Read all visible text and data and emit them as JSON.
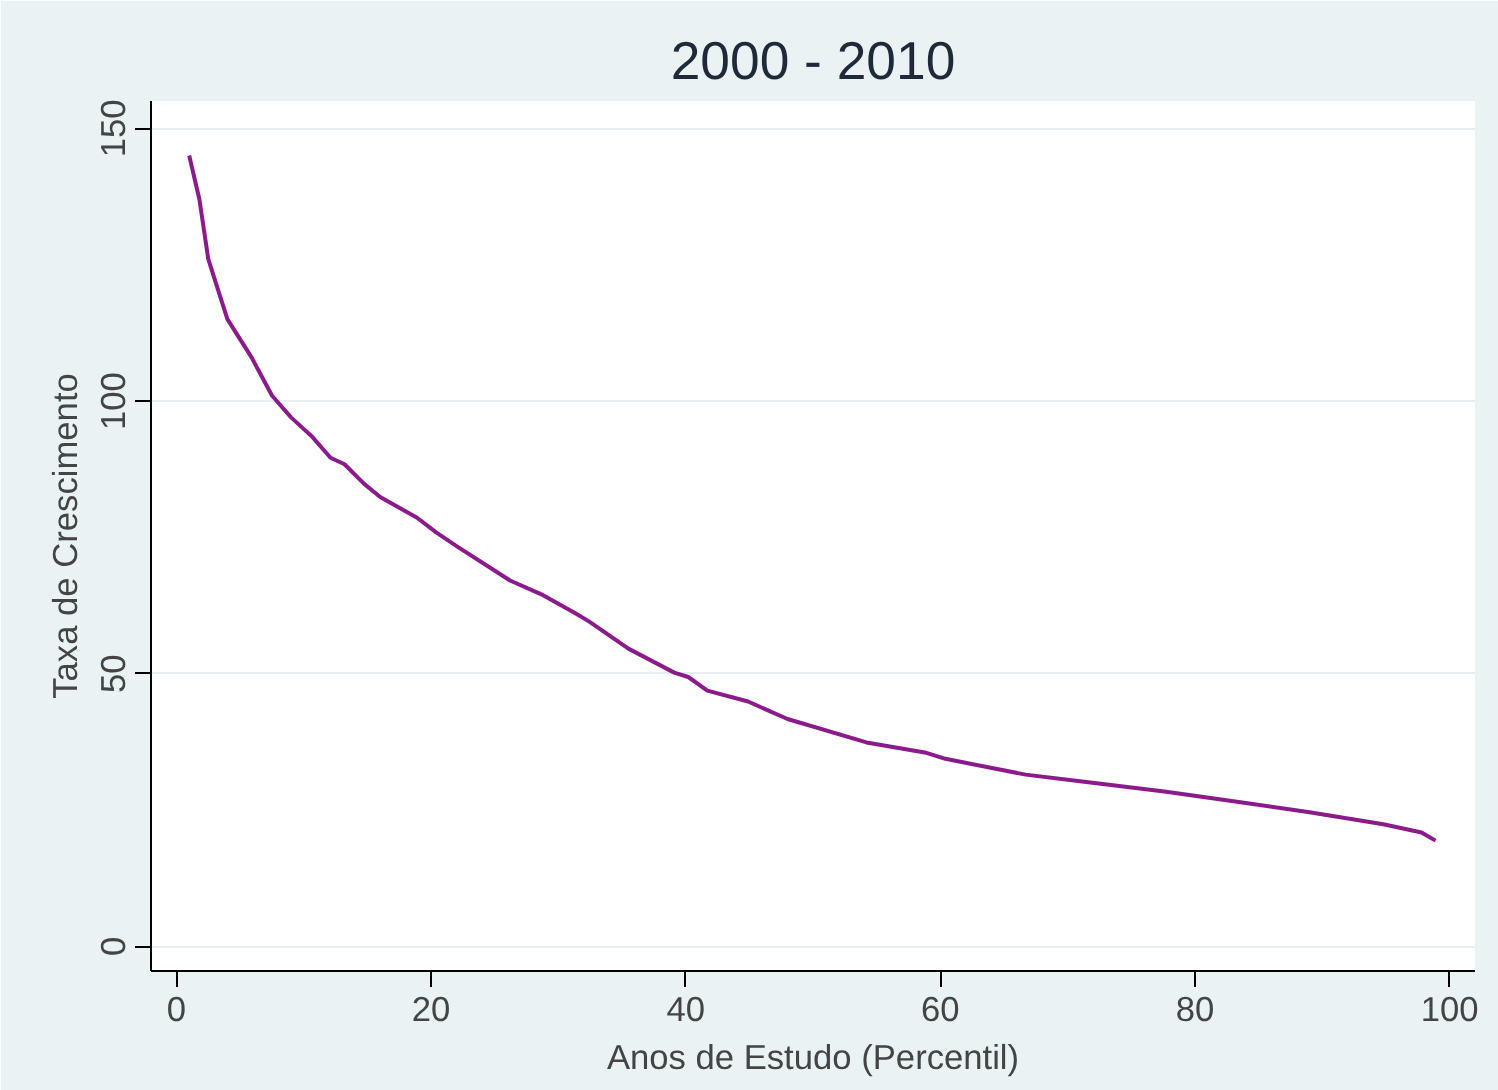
{
  "chart_data": {
    "type": "line",
    "title": "2000 - 2010",
    "xlabel": "Anos de Estudo (Percentil)",
    "ylabel": "Taxa de Crescimento",
    "series": [
      {
        "color": "#8b1a8b",
        "x": [
          1,
          1.8,
          2.5,
          4,
          5.9,
          7.5,
          9,
          10.6,
          12.1,
          13.2,
          14.7,
          16,
          18.9,
          20.4,
          22,
          26.2,
          28.8,
          31.4,
          32.4,
          35.5,
          39.1,
          40.2,
          41.7,
          44.9,
          48,
          54.2,
          58.9,
          60.4,
          66.7,
          71.3,
          77.6,
          82.2,
          89,
          94.8,
          97.8,
          98.9
        ],
        "values": [
          145,
          137,
          126,
          115,
          108,
          101,
          97,
          93.6,
          89.6,
          88.4,
          84.9,
          82.4,
          78.6,
          75.9,
          73.4,
          67.1,
          64.4,
          61,
          59.6,
          54.6,
          50.2,
          49.4,
          46.9,
          44.9,
          41.7,
          37.4,
          35.5,
          34.4,
          31.5,
          30.2,
          28.4,
          26.9,
          24.6,
          22.4,
          20.9,
          19.4
        ]
      }
    ],
    "xlim": [
      -2,
      102
    ],
    "ylim": [
      -4.5,
      155
    ],
    "xticks": [
      0,
      20,
      40,
      60,
      80,
      100
    ],
    "yticks": [
      0,
      50,
      100,
      150
    ],
    "grid": "y"
  }
}
